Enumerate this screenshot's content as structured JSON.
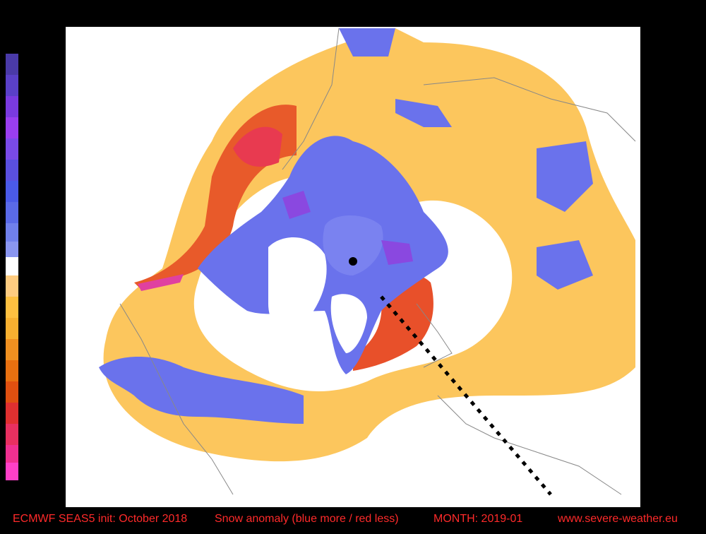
{
  "footer": {
    "init": "ECMWF SEAS5 init: October 2018",
    "description": "Snow anomaly (blue more / red less)",
    "month": "MONTH: 2019-01",
    "website": "www.severe-weather.eu"
  }
}
